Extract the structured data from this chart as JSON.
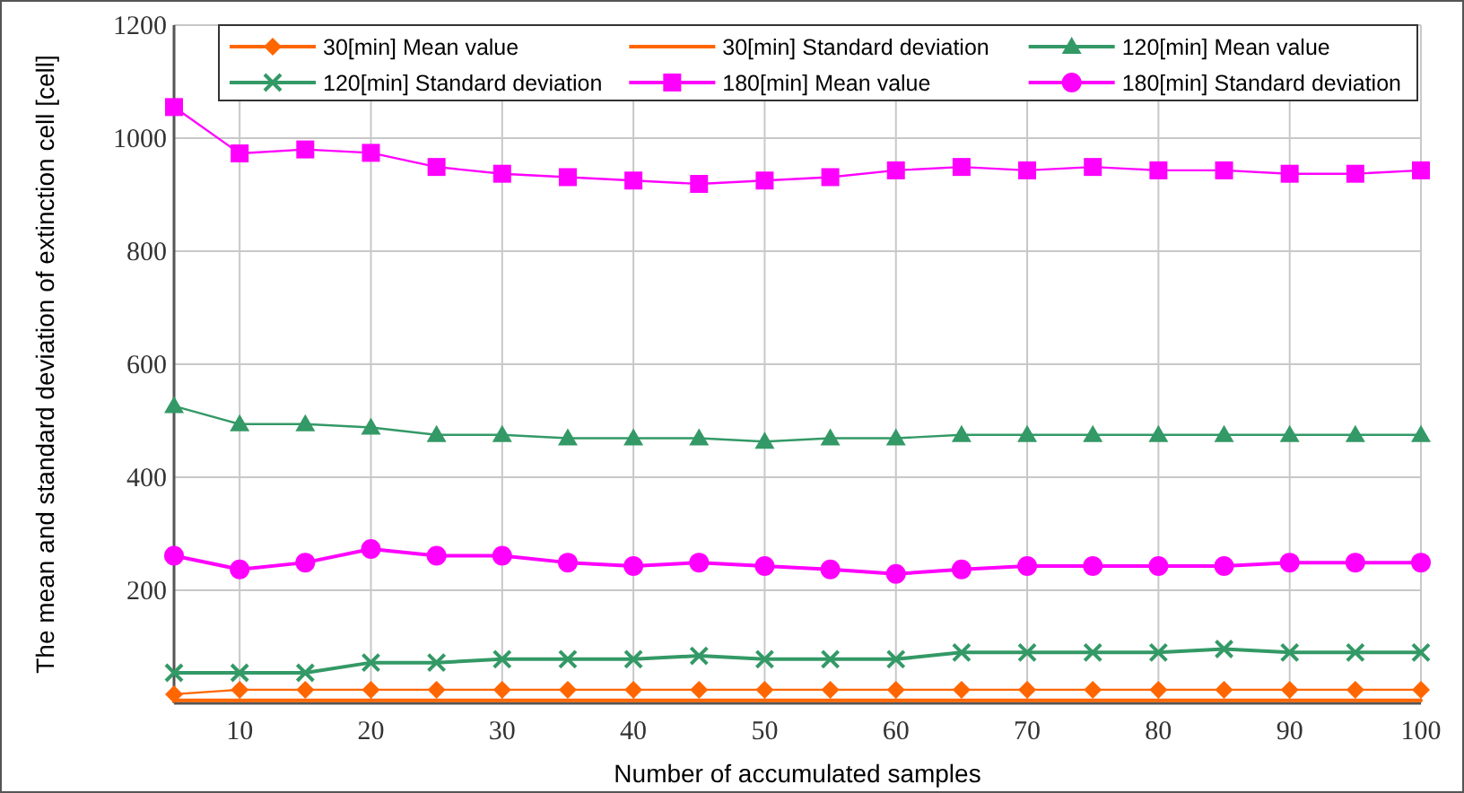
{
  "chart_data": {
    "type": "line",
    "xlabel": "Number of accumulated samples",
    "ylabel": "The mean and standard deviation of extinction cell [cell]",
    "x": [
      5,
      10,
      15,
      20,
      25,
      30,
      35,
      40,
      45,
      50,
      55,
      60,
      65,
      70,
      75,
      80,
      85,
      90,
      95,
      100
    ],
    "xlim": [
      5,
      100
    ],
    "xticks": [
      10,
      20,
      30,
      40,
      50,
      60,
      70,
      80,
      90,
      100
    ],
    "ylim": [
      0,
      1200
    ],
    "yticks": [
      {
        "value": 0,
        "label": null
      },
      200,
      400,
      600,
      800,
      1000,
      1200
    ],
    "grid": true,
    "legend": "top",
    "series": [
      {
        "name": "30[min] Mean value",
        "color": "#ff6600",
        "marker": "diamond",
        "values": [
          16,
          24,
          24,
          24,
          24,
          24,
          24,
          24,
          24,
          24,
          24,
          24,
          24,
          24,
          24,
          24,
          24,
          24,
          24,
          24
        ]
      },
      {
        "name": "30[min] Standard deviation",
        "color": "#ff6600",
        "marker": "none",
        "values": [
          5,
          5,
          5,
          5,
          5,
          5,
          5,
          5,
          5,
          5,
          5,
          5,
          5,
          5,
          5,
          5,
          5,
          5,
          5,
          5
        ]
      },
      {
        "name": "120[min] Mean value",
        "color": "#339966",
        "marker": "triangle",
        "values": [
          526,
          494,
          494,
          488,
          475,
          475,
          469,
          469,
          469,
          463,
          469,
          469,
          475,
          475,
          475,
          475,
          475,
          475,
          475,
          475
        ]
      },
      {
        "name": "120[min] Standard deviation",
        "color": "#339966",
        "marker": "cross",
        "values": [
          54,
          54,
          54,
          72,
          72,
          78,
          78,
          78,
          84,
          78,
          78,
          78,
          90,
          90,
          90,
          90,
          96,
          90,
          90,
          90
        ]
      },
      {
        "name": "180[min] Mean value",
        "color": "#ff00ff",
        "marker": "square",
        "values": [
          1055,
          973,
          980,
          974,
          949,
          937,
          931,
          925,
          919,
          925,
          931,
          943,
          949,
          943,
          949,
          943,
          943,
          937,
          937,
          943
        ]
      },
      {
        "name": "180[min] Standard deviation",
        "color": "#ff00ff",
        "marker": "circle",
        "values": [
          261,
          237,
          249,
          273,
          261,
          261,
          249,
          243,
          249,
          243,
          237,
          229,
          237,
          243,
          243,
          243,
          243,
          249,
          249,
          249
        ]
      }
    ]
  }
}
